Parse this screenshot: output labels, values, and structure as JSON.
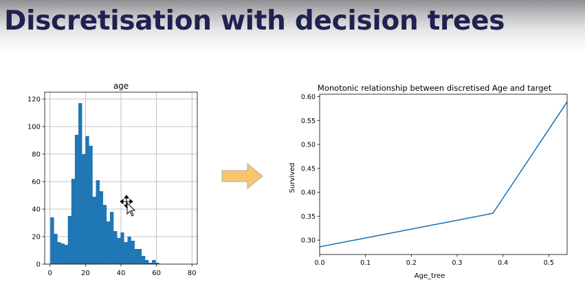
{
  "slide": {
    "title": "Discretisation with decision trees"
  },
  "colors": {
    "title": "#1f2250",
    "bar": "#1f77b4",
    "line": "#1f77b4",
    "arrow_fill": "#f9c46b",
    "arrow_stroke": "#b8b8b8"
  },
  "icons": [
    "right-arrow-icon",
    "move-cursor-icon"
  ],
  "chart_data": [
    {
      "type": "bar",
      "title": "age",
      "xlabel": "",
      "ylabel": "",
      "xlim": [
        -3,
        83
      ],
      "ylim": [
        0,
        125
      ],
      "grid": true,
      "xticks": [
        0,
        20,
        40,
        60,
        80
      ],
      "yticks": [
        0,
        20,
        40,
        60,
        80,
        100,
        120
      ],
      "bin_edges": [
        0.17,
        2.15,
        4.12,
        6.1,
        8.08,
        10.05,
        12.03,
        14.01,
        15.98,
        17.96,
        19.94,
        21.92,
        23.89,
        25.87,
        27.85,
        29.82,
        31.8,
        33.78,
        35.75,
        37.73,
        39.71,
        41.68,
        43.66,
        45.64,
        47.61,
        49.59,
        51.57,
        53.54,
        55.52,
        57.5,
        59.47,
        61.45,
        63.43,
        65.41,
        67.38,
        69.36,
        71.34,
        73.31,
        75.29,
        77.27,
        79.24
      ],
      "values": [
        34,
        22,
        16,
        15,
        14,
        35,
        62,
        94,
        117,
        80,
        93,
        86,
        49,
        61,
        53,
        43,
        31,
        38,
        24,
        19,
        23,
        16,
        20,
        17,
        11,
        11,
        6,
        3,
        1,
        3,
        1,
        0,
        0,
        0,
        0,
        0,
        0,
        0,
        0,
        0
      ]
    },
    {
      "type": "line",
      "title": "Monotonic relationship between discretised Age and target",
      "xlabel": "Age_tree",
      "ylabel": "Survived",
      "xlim": [
        0.0,
        0.54
      ],
      "ylim": [
        0.27,
        0.605
      ],
      "grid": false,
      "xticks": [
        "0.0",
        "0.1",
        "0.2",
        "0.3",
        "0.4",
        "0.5"
      ],
      "yticks": [
        "0.30",
        "0.35",
        "0.40",
        "0.45",
        "0.50",
        "0.55",
        "0.60"
      ],
      "x": [
        0.0,
        0.378,
        0.54
      ],
      "y": [
        0.286,
        0.356,
        0.589
      ]
    }
  ]
}
